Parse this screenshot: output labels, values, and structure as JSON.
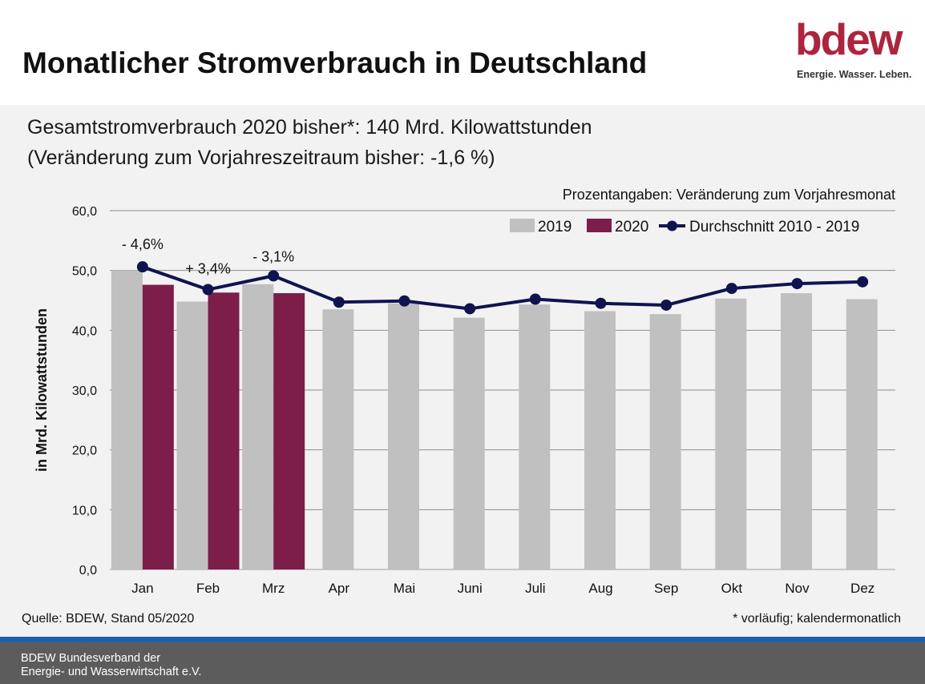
{
  "header": {
    "title": "Monatlicher Stromverbrauch in Deutschland",
    "logo_word": "bdew",
    "logo_tagline": "Energie. Wasser. Leben."
  },
  "subtitle": {
    "line1": "Gesamtstromverbrauch 2020 bisher*: 140 Mrd. Kilowattstunden",
    "line2": "(Veränderung zum Vorjahreszeitraum bisher: -1,6 %)"
  },
  "chart_note": "Prozentangaben: Veränderung zum Vorjahresmonat",
  "source": "Quelle: BDEW, Stand 05/2020",
  "footnote": "* vorläufig; kalendermonatlich",
  "footer": {
    "line1": "BDEW Bundesverband der",
    "line2": "Energie- und Wasserwirtschaft e.V."
  },
  "colors": {
    "bar_2019": "#c0c0c0",
    "bar_2020": "#7d1d49",
    "line_avg": "#0f1450",
    "logo": "#b0233c",
    "footer_blue": "#1f5fa8"
  },
  "chart_data": {
    "type": "bar",
    "categories": [
      "Jan",
      "Feb",
      "Mrz",
      "Apr",
      "Mai",
      "Juni",
      "Juli",
      "Aug",
      "Sep",
      "Okt",
      "Nov",
      "Dez"
    ],
    "ylabel": "in Mrd. Kilowattstunden",
    "xlabel": "",
    "ylim": [
      0,
      60
    ],
    "yticks": [
      "0,0",
      "10,0",
      "20,0",
      "30,0",
      "40,0",
      "50,0",
      "60,0"
    ],
    "grid": true,
    "legend_position": "top-right",
    "series": [
      {
        "name": "2019",
        "type": "bar",
        "values": [
          50.0,
          44.8,
          47.7,
          43.5,
          44.5,
          42.1,
          44.3,
          43.2,
          42.7,
          45.3,
          46.2,
          45.2
        ]
      },
      {
        "name": "2020",
        "type": "bar",
        "values": [
          47.6,
          46.3,
          46.2,
          null,
          null,
          null,
          null,
          null,
          null,
          null,
          null,
          null
        ]
      },
      {
        "name": "Durchschnitt 2010 - 2019",
        "type": "line",
        "values": [
          50.6,
          46.8,
          49.1,
          44.7,
          44.9,
          43.6,
          45.2,
          44.5,
          44.2,
          47.0,
          47.8,
          48.1
        ]
      }
    ],
    "annotations": [
      {
        "category": "Jan",
        "text": "- 4,6%"
      },
      {
        "category": "Feb",
        "text": "+ 3,4%"
      },
      {
        "category": "Mrz",
        "text": "- 3,1%"
      }
    ]
  }
}
